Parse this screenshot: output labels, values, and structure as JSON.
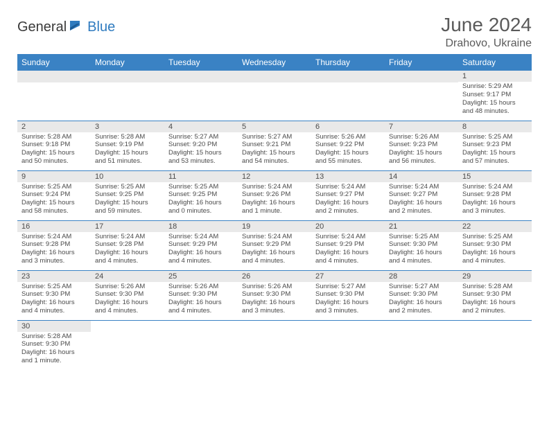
{
  "brand": {
    "part1": "General",
    "part2": "Blue"
  },
  "title": "June 2024",
  "location": "Drahovo, Ukraine",
  "colors": {
    "header_bg": "#3a82c4",
    "header_text": "#ffffff",
    "day_num_bg": "#e9e9e9",
    "border": "#3a82c4",
    "text": "#4a4a4a",
    "brand_dark": "#3a3a3a",
    "brand_blue": "#2f7bbf"
  },
  "weekdays": [
    "Sunday",
    "Monday",
    "Tuesday",
    "Wednesday",
    "Thursday",
    "Friday",
    "Saturday"
  ],
  "weeks": [
    [
      null,
      null,
      null,
      null,
      null,
      null,
      {
        "n": "1",
        "sunrise": "Sunrise: 5:29 AM",
        "sunset": "Sunset: 9:17 PM",
        "daylight": "Daylight: 15 hours and 48 minutes."
      }
    ],
    [
      {
        "n": "2",
        "sunrise": "Sunrise: 5:28 AM",
        "sunset": "Sunset: 9:18 PM",
        "daylight": "Daylight: 15 hours and 50 minutes."
      },
      {
        "n": "3",
        "sunrise": "Sunrise: 5:28 AM",
        "sunset": "Sunset: 9:19 PM",
        "daylight": "Daylight: 15 hours and 51 minutes."
      },
      {
        "n": "4",
        "sunrise": "Sunrise: 5:27 AM",
        "sunset": "Sunset: 9:20 PM",
        "daylight": "Daylight: 15 hours and 53 minutes."
      },
      {
        "n": "5",
        "sunrise": "Sunrise: 5:27 AM",
        "sunset": "Sunset: 9:21 PM",
        "daylight": "Daylight: 15 hours and 54 minutes."
      },
      {
        "n": "6",
        "sunrise": "Sunrise: 5:26 AM",
        "sunset": "Sunset: 9:22 PM",
        "daylight": "Daylight: 15 hours and 55 minutes."
      },
      {
        "n": "7",
        "sunrise": "Sunrise: 5:26 AM",
        "sunset": "Sunset: 9:23 PM",
        "daylight": "Daylight: 15 hours and 56 minutes."
      },
      {
        "n": "8",
        "sunrise": "Sunrise: 5:25 AM",
        "sunset": "Sunset: 9:23 PM",
        "daylight": "Daylight: 15 hours and 57 minutes."
      }
    ],
    [
      {
        "n": "9",
        "sunrise": "Sunrise: 5:25 AM",
        "sunset": "Sunset: 9:24 PM",
        "daylight": "Daylight: 15 hours and 58 minutes."
      },
      {
        "n": "10",
        "sunrise": "Sunrise: 5:25 AM",
        "sunset": "Sunset: 9:25 PM",
        "daylight": "Daylight: 15 hours and 59 minutes."
      },
      {
        "n": "11",
        "sunrise": "Sunrise: 5:25 AM",
        "sunset": "Sunset: 9:25 PM",
        "daylight": "Daylight: 16 hours and 0 minutes."
      },
      {
        "n": "12",
        "sunrise": "Sunrise: 5:24 AM",
        "sunset": "Sunset: 9:26 PM",
        "daylight": "Daylight: 16 hours and 1 minute."
      },
      {
        "n": "13",
        "sunrise": "Sunrise: 5:24 AM",
        "sunset": "Sunset: 9:27 PM",
        "daylight": "Daylight: 16 hours and 2 minutes."
      },
      {
        "n": "14",
        "sunrise": "Sunrise: 5:24 AM",
        "sunset": "Sunset: 9:27 PM",
        "daylight": "Daylight: 16 hours and 2 minutes."
      },
      {
        "n": "15",
        "sunrise": "Sunrise: 5:24 AM",
        "sunset": "Sunset: 9:28 PM",
        "daylight": "Daylight: 16 hours and 3 minutes."
      }
    ],
    [
      {
        "n": "16",
        "sunrise": "Sunrise: 5:24 AM",
        "sunset": "Sunset: 9:28 PM",
        "daylight": "Daylight: 16 hours and 3 minutes."
      },
      {
        "n": "17",
        "sunrise": "Sunrise: 5:24 AM",
        "sunset": "Sunset: 9:28 PM",
        "daylight": "Daylight: 16 hours and 4 minutes."
      },
      {
        "n": "18",
        "sunrise": "Sunrise: 5:24 AM",
        "sunset": "Sunset: 9:29 PM",
        "daylight": "Daylight: 16 hours and 4 minutes."
      },
      {
        "n": "19",
        "sunrise": "Sunrise: 5:24 AM",
        "sunset": "Sunset: 9:29 PM",
        "daylight": "Daylight: 16 hours and 4 minutes."
      },
      {
        "n": "20",
        "sunrise": "Sunrise: 5:24 AM",
        "sunset": "Sunset: 9:29 PM",
        "daylight": "Daylight: 16 hours and 4 minutes."
      },
      {
        "n": "21",
        "sunrise": "Sunrise: 5:25 AM",
        "sunset": "Sunset: 9:30 PM",
        "daylight": "Daylight: 16 hours and 4 minutes."
      },
      {
        "n": "22",
        "sunrise": "Sunrise: 5:25 AM",
        "sunset": "Sunset: 9:30 PM",
        "daylight": "Daylight: 16 hours and 4 minutes."
      }
    ],
    [
      {
        "n": "23",
        "sunrise": "Sunrise: 5:25 AM",
        "sunset": "Sunset: 9:30 PM",
        "daylight": "Daylight: 16 hours and 4 minutes."
      },
      {
        "n": "24",
        "sunrise": "Sunrise: 5:26 AM",
        "sunset": "Sunset: 9:30 PM",
        "daylight": "Daylight: 16 hours and 4 minutes."
      },
      {
        "n": "25",
        "sunrise": "Sunrise: 5:26 AM",
        "sunset": "Sunset: 9:30 PM",
        "daylight": "Daylight: 16 hours and 4 minutes."
      },
      {
        "n": "26",
        "sunrise": "Sunrise: 5:26 AM",
        "sunset": "Sunset: 9:30 PM",
        "daylight": "Daylight: 16 hours and 3 minutes."
      },
      {
        "n": "27",
        "sunrise": "Sunrise: 5:27 AM",
        "sunset": "Sunset: 9:30 PM",
        "daylight": "Daylight: 16 hours and 3 minutes."
      },
      {
        "n": "28",
        "sunrise": "Sunrise: 5:27 AM",
        "sunset": "Sunset: 9:30 PM",
        "daylight": "Daylight: 16 hours and 2 minutes."
      },
      {
        "n": "29",
        "sunrise": "Sunrise: 5:28 AM",
        "sunset": "Sunset: 9:30 PM",
        "daylight": "Daylight: 16 hours and 2 minutes."
      }
    ],
    [
      {
        "n": "30",
        "sunrise": "Sunrise: 5:28 AM",
        "sunset": "Sunset: 9:30 PM",
        "daylight": "Daylight: 16 hours and 1 minute."
      },
      null,
      null,
      null,
      null,
      null,
      null
    ]
  ]
}
